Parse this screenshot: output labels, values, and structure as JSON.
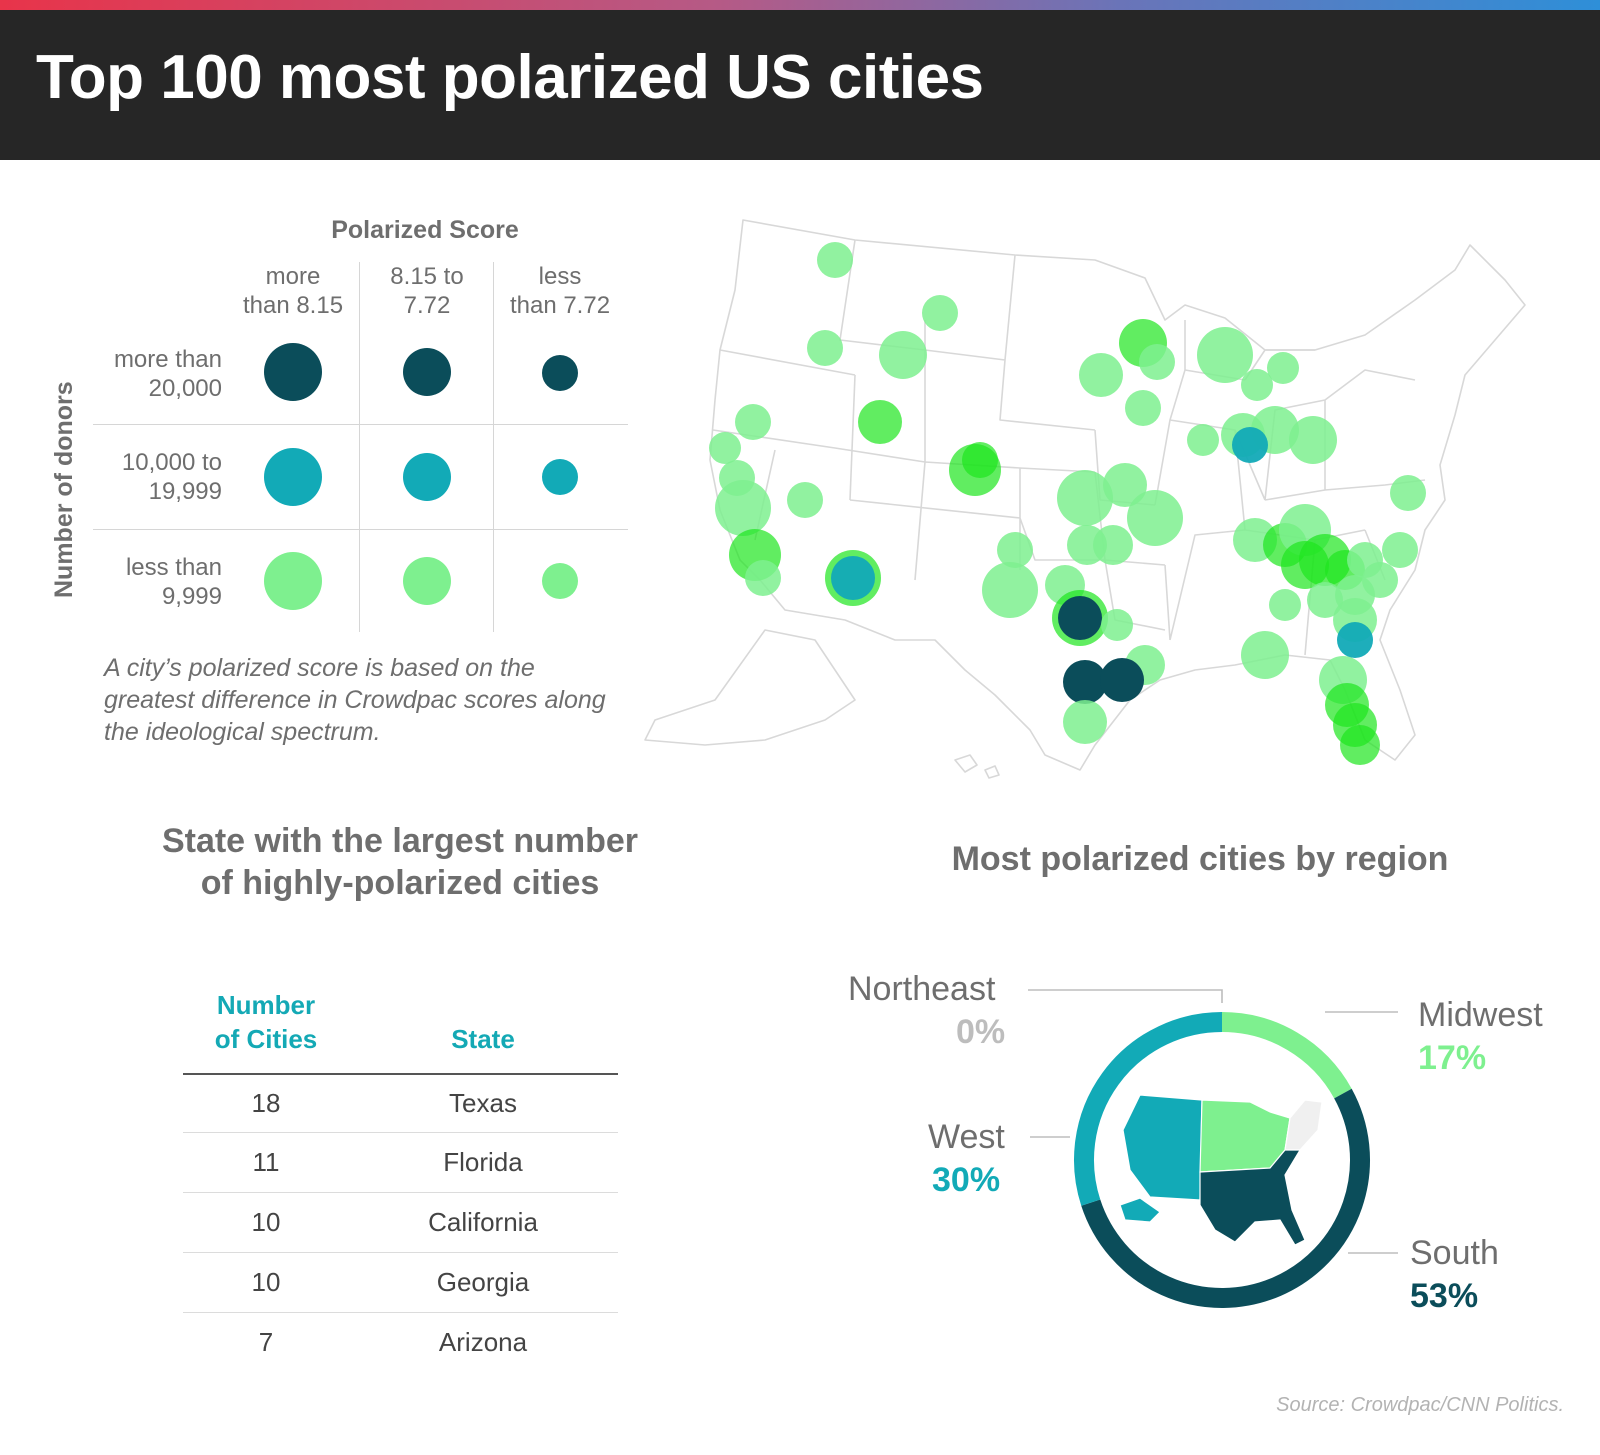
{
  "header": {
    "title": "Top 100 most polarized US cities"
  },
  "colors": {
    "dark": "#0b4d5a",
    "mid": "#12aab7",
    "light": "#7ef08f",
    "map_bubble": "#1ee61e",
    "northeast": "#f0f0f0"
  },
  "legend": {
    "heading": "Polarized Score",
    "y_axis_label": "Number of donors",
    "columns": [
      {
        "line1": "more",
        "line2": "than 8.15"
      },
      {
        "line1": "8.15 to",
        "line2": "7.72"
      },
      {
        "line1": "less",
        "line2": "than 7.72"
      }
    ],
    "rows": [
      {
        "line1": "more than",
        "line2": "20,000",
        "color": "#0b4d5a"
      },
      {
        "line1": "10,000 to",
        "line2": "19,999",
        "color": "#12aab7"
      },
      {
        "line1": "less than",
        "line2": "9,999",
        "color": "#7ef08f"
      }
    ],
    "note": "A city’s polarized score is based on the greatest difference in Crowdpac scores along the ideological spectrum."
  },
  "map": {
    "icon": "us-map-icon"
  },
  "table": {
    "title_line1": "State with the largest number",
    "title_line2": "of highly-polarized cities",
    "col_count_line1": "Number",
    "col_count_line2": "of Cities",
    "col_state": "State",
    "rows": [
      {
        "count": "18",
        "state": "Texas"
      },
      {
        "count": "11",
        "state": "Florida"
      },
      {
        "count": "10",
        "state": "California"
      },
      {
        "count": "10",
        "state": "Georgia"
      },
      {
        "count": "7",
        "state": "Arizona"
      }
    ]
  },
  "chart_data": {
    "type": "pie",
    "title": "Most polarized cities by region",
    "categories": [
      "Northeast",
      "Midwest",
      "South",
      "West"
    ],
    "values": [
      0,
      17,
      53,
      30
    ],
    "value_labels": [
      "0%",
      "17%",
      "53%",
      "30%"
    ],
    "colors": [
      "#bdbdbd",
      "#7ef08f",
      "#0b4d5a",
      "#12aab7"
    ]
  },
  "source": "Source: Crowdpac/CNN Politics."
}
